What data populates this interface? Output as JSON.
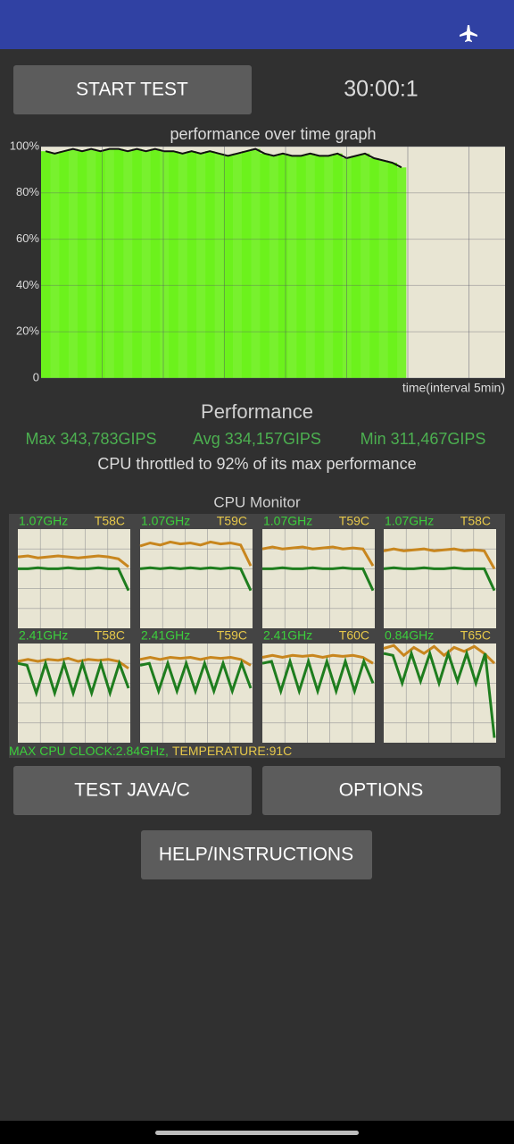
{
  "header": {
    "timer": "30:00:1",
    "start_button": "START TEST"
  },
  "graph": {
    "title": "performance over time graph",
    "x_label": "time(interval 5min)",
    "ylim": [
      0,
      100
    ],
    "yticks": [
      {
        "value": 0,
        "label": "0"
      },
      {
        "value": 20,
        "label": "20%"
      },
      {
        "value": 40,
        "label": "40%"
      },
      {
        "value": 60,
        "label": "60%"
      },
      {
        "value": 80,
        "label": "80%"
      },
      {
        "value": 100,
        "label": "100%"
      }
    ],
    "bar_color": "#6cf21c",
    "line_color": "#111111",
    "values": [
      98,
      97,
      98,
      99,
      98,
      99,
      98,
      99,
      99,
      98,
      99,
      98,
      99,
      98,
      98,
      97,
      98,
      97,
      98,
      97,
      96,
      97,
      98,
      99,
      97,
      96,
      97,
      96,
      96,
      97,
      96,
      96,
      97,
      95,
      96,
      97,
      95,
      94,
      93,
      91
    ]
  },
  "performance": {
    "title": "Performance",
    "max": "Max 343,783GIPS",
    "avg": "Avg 334,157GIPS",
    "min": "Min 311,467GIPS",
    "throttle": "CPU throttled to 92% of its max performance"
  },
  "cpu": {
    "title": "CPU Monitor",
    "max_clock": "MAX CPU CLOCK:2.84GHz,",
    "temperature": "TEMPERATURE:91C",
    "cores": [
      {
        "freq": "1.07GHz",
        "temp": "T58C",
        "series": [
          {
            "color": "#c8861e",
            "values": [
              72,
              73,
              71,
              72,
              73,
              72,
              71,
              72,
              73,
              72,
              70,
              62
            ]
          },
          {
            "color": "#1e7d1e",
            "values": [
              60,
              60,
              61,
              60,
              60,
              61,
              60,
              60,
              61,
              60,
              60,
              38
            ]
          }
        ]
      },
      {
        "freq": "1.07GHz",
        "temp": "T59C",
        "series": [
          {
            "color": "#c8861e",
            "values": [
              83,
              86,
              84,
              87,
              85,
              86,
              84,
              87,
              85,
              86,
              84,
              63
            ]
          },
          {
            "color": "#1e7d1e",
            "values": [
              60,
              61,
              60,
              61,
              60,
              61,
              60,
              61,
              60,
              61,
              60,
              38
            ]
          }
        ]
      },
      {
        "freq": "1.07GHz",
        "temp": "T59C",
        "series": [
          {
            "color": "#c8861e",
            "values": [
              80,
              82,
              80,
              81,
              82,
              80,
              81,
              82,
              80,
              81,
              80,
              63
            ]
          },
          {
            "color": "#1e7d1e",
            "values": [
              60,
              60,
              61,
              60,
              60,
              61,
              60,
              60,
              61,
              60,
              60,
              38
            ]
          }
        ]
      },
      {
        "freq": "1.07GHz",
        "temp": "T58C",
        "series": [
          {
            "color": "#c8861e",
            "values": [
              78,
              80,
              78,
              79,
              80,
              78,
              79,
              80,
              78,
              79,
              78,
              60
            ]
          },
          {
            "color": "#1e7d1e",
            "values": [
              60,
              61,
              60,
              60,
              61,
              60,
              60,
              61,
              60,
              60,
              60,
              38
            ]
          }
        ]
      },
      {
        "freq": "2.41GHz",
        "temp": "T58C",
        "series": [
          {
            "color": "#c8861e",
            "values": [
              82,
              84,
              82,
              84,
              83,
              85,
              82,
              84,
              83,
              84,
              82,
              75
            ]
          },
          {
            "color": "#1e7d1e",
            "values": [
              80,
              78,
              50,
              80,
              50,
              80,
              50,
              80,
              50,
              80,
              50,
              80,
              55
            ]
          }
        ]
      },
      {
        "freq": "2.41GHz",
        "temp": "T59C",
        "series": [
          {
            "color": "#c8861e",
            "values": [
              84,
              86,
              84,
              86,
              85,
              86,
              84,
              86,
              85,
              86,
              84,
              78
            ]
          },
          {
            "color": "#1e7d1e",
            "values": [
              78,
              80,
              52,
              80,
              52,
              80,
              52,
              80,
              52,
              80,
              52,
              80,
              55
            ]
          }
        ]
      },
      {
        "freq": "2.41GHz",
        "temp": "T60C",
        "series": [
          {
            "color": "#c8861e",
            "values": [
              86,
              88,
              86,
              88,
              87,
              88,
              86,
              88,
              87,
              88,
              86,
              80
            ]
          },
          {
            "color": "#1e7d1e",
            "values": [
              80,
              82,
              52,
              82,
              52,
              82,
              52,
              82,
              52,
              82,
              52,
              82,
              60
            ]
          }
        ]
      },
      {
        "freq": "0.84GHz",
        "temp": "T65C",
        "series": [
          {
            "color": "#c8861e",
            "values": [
              95,
              98,
              88,
              96,
              90,
              97,
              88,
              96,
              92,
              97,
              90,
              80
            ]
          },
          {
            "color": "#1e7d1e",
            "values": [
              90,
              88,
              60,
              90,
              62,
              90,
              60,
              90,
              62,
              90,
              60,
              90,
              5
            ]
          }
        ]
      }
    ]
  },
  "buttons": {
    "test_java": "TEST JAVA/C",
    "options": "OPTIONS",
    "help": "HELP/INSTRUCTIONS"
  }
}
